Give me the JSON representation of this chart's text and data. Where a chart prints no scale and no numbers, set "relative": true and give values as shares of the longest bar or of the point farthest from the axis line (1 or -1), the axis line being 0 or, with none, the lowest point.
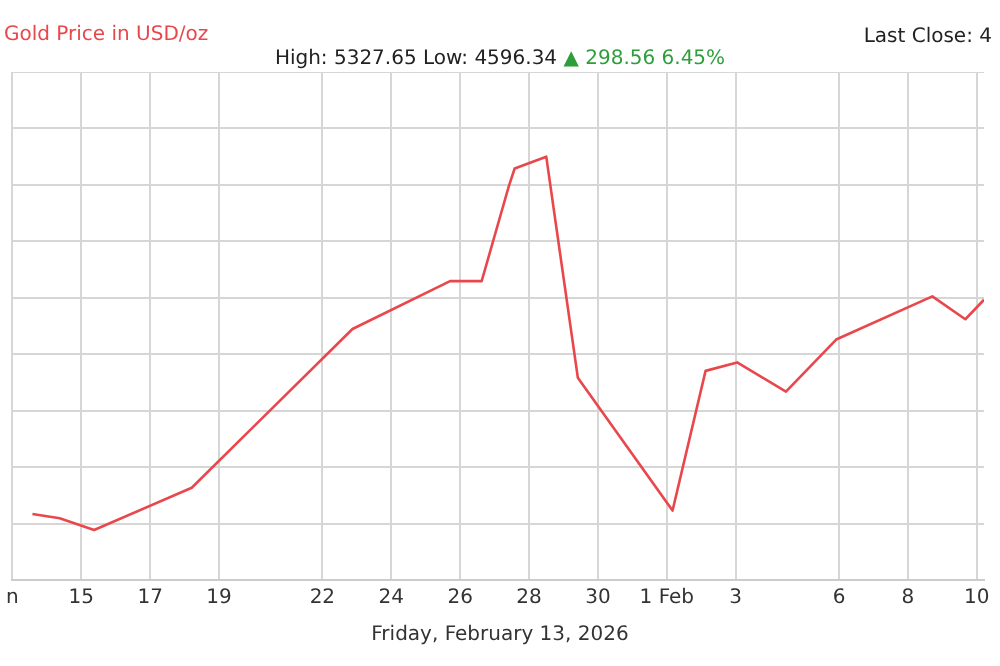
{
  "chart_data": {
    "type": "line",
    "title": "Gold Price in USD/oz",
    "subtitle": "High: 5327.65 Low: 4596.34",
    "annotations": [
      "▲ 298.56 6.45%",
      "Last Close: 4",
      "Friday, February 13, 2026"
    ],
    "relative": true,
    "grid": true,
    "legend": false,
    "marker": "none",
    "line_style": "solid",
    "xlim": [
      "--01-13",
      "--02-10T05:00"
    ],
    "xticks": [
      {
        "value": "--01-13",
        "label": "n"
      },
      {
        "value": "--01-15",
        "label": "15"
      },
      {
        "value": "--01-17",
        "label": "17"
      },
      {
        "value": "--01-19",
        "label": "19"
      },
      {
        "value": "--01-22",
        "label": "22"
      },
      {
        "value": "--01-24",
        "label": "24"
      },
      {
        "value": "--01-26",
        "label": "26"
      },
      {
        "value": "--01-28",
        "label": "28"
      },
      {
        "value": "--01-30",
        "label": "30"
      },
      {
        "value": "--02-01",
        "label": "1 Feb"
      },
      {
        "value": "--02-03",
        "label": "3"
      },
      {
        "value": "--02-06",
        "label": "6"
      },
      {
        "value": "--02-08",
        "label": "8"
      },
      {
        "value": "--02-10",
        "label": "10"
      }
    ],
    "series": [
      {
        "color": "#e8474c",
        "x": [
          "--01-13T14:00",
          "--01-14T09:00",
          "--01-15T09:00",
          "--01-18T05:00",
          "--01-22T21:00",
          "--01-25T17:00",
          "--01-26T15:00",
          "--01-27T10:00",
          "--01-27T14:00",
          "--01-28T12:00",
          "--01-29T10:00",
          "--02-01T04:00",
          "--02-02T03:00",
          "--02-03T01:00",
          "--02-04T11:00",
          "--02-05T22:00",
          "--02-08T17:00",
          "--02-09T16:00",
          "--02-10T05:00"
        ],
        "values": [
          0.156,
          0.146,
          0.118,
          0.218,
          0.593,
          0.706,
          0.706,
          0.931,
          0.972,
          1,
          0.478,
          0.164,
          0.494,
          0.514,
          0.445,
          0.568,
          0.67,
          0.616,
          0.662
        ]
      }
    ]
  }
}
